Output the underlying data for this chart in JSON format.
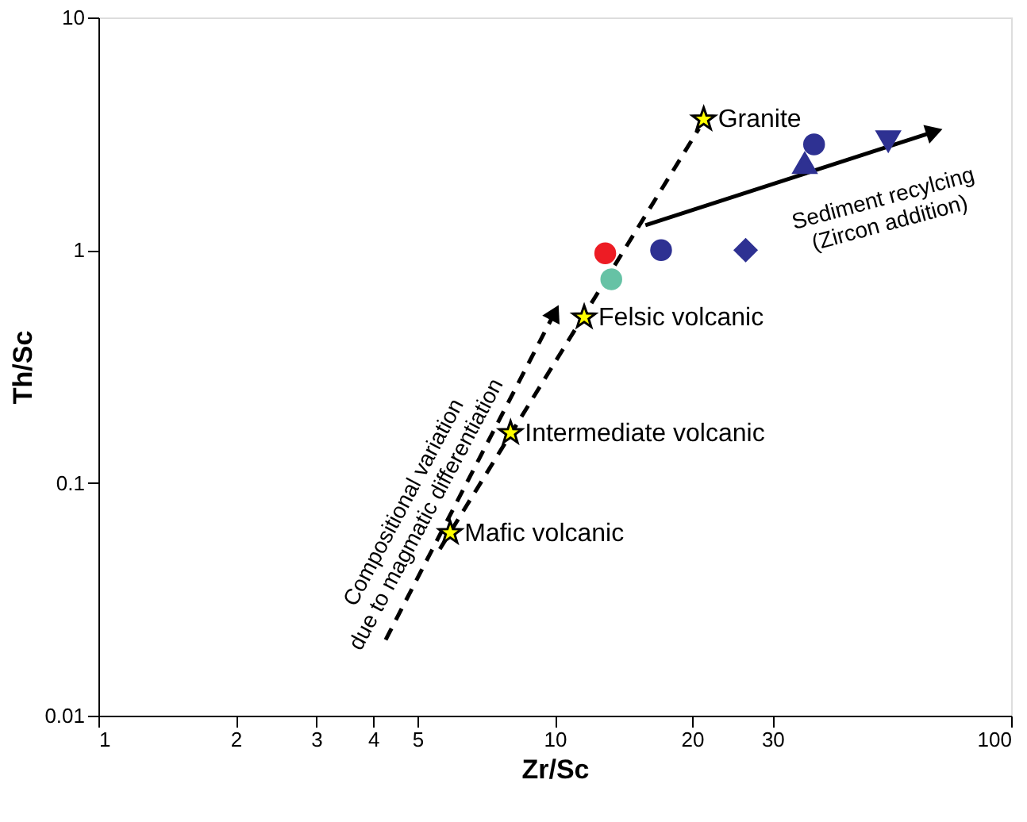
{
  "chart_data": {
    "type": "scatter",
    "xlabel": "Zr/Sc",
    "ylabel": "Th/Sc",
    "log": "xy",
    "grid": false,
    "xlim": [
      1,
      100
    ],
    "xticks": [
      1,
      2,
      3,
      4,
      5,
      10,
      20,
      30,
      100
    ],
    "ylim": [
      0.01,
      10
    ],
    "yticks": [
      0.01,
      0.1,
      1,
      10
    ],
    "series": [
      {
        "type": "line",
        "line_style": "dashed",
        "marker": "none",
        "color": "#000000",
        "x": [
          5.6,
          20.7
        ],
        "values": [
          0.052,
          3.33
        ]
      },
      {
        "type": "line",
        "line_style": "dashed",
        "marker": "triangle",
        "color": "#000000",
        "x": [
          4.26,
          10.0
        ],
        "values": [
          0.0212,
          0.54
        ]
      },
      {
        "type": "line",
        "line_style": "solid",
        "marker": "triangle",
        "color": "#000000",
        "x": [
          15.8,
          67.9
        ],
        "values": [
          1.28,
          3.23
        ]
      },
      {
        "marker": "star",
        "color": "#ffff00",
        "x": [
          21.2,
          11.6,
          8.0,
          5.9
        ],
        "values": [
          3.65,
          0.515,
          0.164,
          0.061
        ]
      },
      {
        "marker": "circle",
        "color": "#2e3192",
        "x": [
          17.1,
          37
        ],
        "values": [
          1.0,
          2.85
        ]
      },
      {
        "marker": "diamond",
        "color": "#2e3192",
        "x": [
          26.2
        ],
        "values": [
          1.0
        ]
      },
      {
        "marker": "triangle",
        "color": "#2e3192",
        "x": [
          35.3
        ],
        "values": [
          2.37
        ]
      },
      {
        "marker": "triangle-down",
        "color": "#2e3192",
        "x": [
          53.8
        ],
        "values": [
          2.94
        ]
      },
      {
        "marker": "circle",
        "color": "#ed1c24",
        "x": [
          12.9
        ],
        "values": [
          0.97
        ]
      },
      {
        "marker": "circle",
        "color": "#66c2a5",
        "x": [
          13.3
        ],
        "values": [
          0.75
        ]
      }
    ],
    "annotations": [
      {
        "text": "Granite",
        "x": 21.2,
        "y": 3.65
      },
      {
        "text": "Felsic volcanic",
        "x": 11.6,
        "y": 0.515
      },
      {
        "text": "Intermediate volcanic",
        "x": 8.0,
        "y": 0.164
      },
      {
        "text": "Mafic volcanic",
        "x": 5.9,
        "y": 0.061
      },
      "Compositional variation\ndue to magmatic differentiation",
      "Sediment recylcing\n(Zircon addition)"
    ]
  }
}
